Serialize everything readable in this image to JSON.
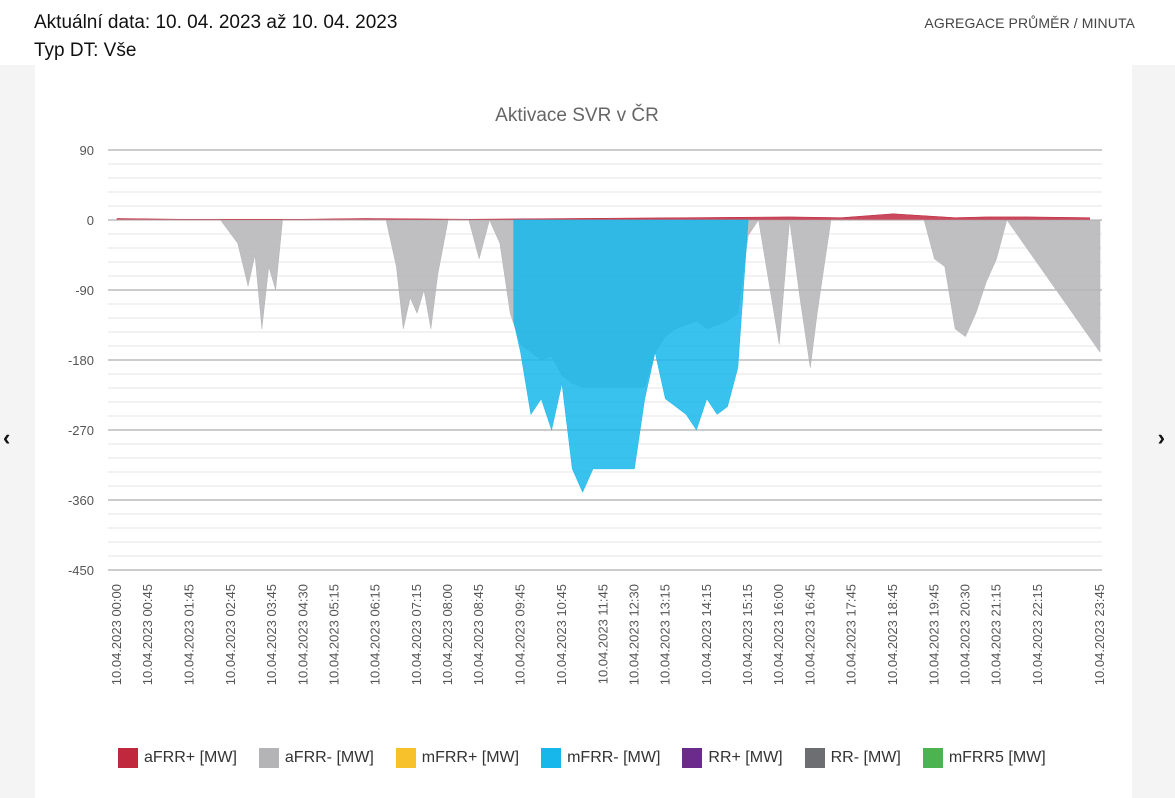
{
  "header": {
    "date_line": "Aktuální data: 10. 04. 2023 až 10. 04. 2023",
    "type_line": "Typ DT: Vše",
    "aggregation": "AGREGACE PRŮMĚR / MINUTA"
  },
  "nav": {
    "prev_icon": "chevron-left-icon",
    "next_icon": "chevron-right-icon"
  },
  "chart_data": {
    "type": "area",
    "title": "Aktivace SVR v ČR",
    "ylim": [
      -450,
      90
    ],
    "yticks": [
      90,
      0,
      -90,
      -180,
      -270,
      -360,
      -450
    ],
    "grid": true,
    "legend_position": "bottom",
    "x_tick_labels": [
      "10.04.2023 00:00",
      "10.04.2023 00:45",
      "10.04.2023 01:45",
      "10.04.2023 02:45",
      "10.04.2023 03:45",
      "10.04.2023 04:30",
      "10.04.2023 05:15",
      "10.04.2023 06:15",
      "10.04.2023 07:15",
      "10.04.2023 08:00",
      "10.04.2023 08:45",
      "10.04.2023 09:45",
      "10.04.2023 10:45",
      "10.04.2023 11:45",
      "10.04.2023 12:30",
      "10.04.2023 13:15",
      "10.04.2023 14:15",
      "10.04.2023 15:15",
      "10.04.2023 16:00",
      "10.04.2023 16:45",
      "10.04.2023 17:45",
      "10.04.2023 18:45",
      "10.04.2023 19:45",
      "10.04.2023 20:30",
      "10.04.2023 21:15",
      "10.04.2023 22:15",
      "10.04.2023 23:45"
    ],
    "series": [
      {
        "name": "aFRR+ [MW]",
        "color": "#c0283e",
        "x": [
          "00:00",
          "01:30",
          "04:30",
          "06:00",
          "08:30",
          "16:15",
          "17:30",
          "18:45",
          "20:15",
          "21:00",
          "22:00",
          "23:30"
        ],
        "values": [
          2,
          1,
          1,
          2,
          1,
          4,
          3,
          8,
          3,
          4,
          4,
          3
        ]
      },
      {
        "name": "aFRR- [MW]",
        "color": "#b4b4b7",
        "x": [
          "00:00",
          "02:30",
          "02:55",
          "03:10",
          "03:20",
          "03:30",
          "03:40",
          "03:50",
          "04:00",
          "06:30",
          "06:45",
          "06:55",
          "07:05",
          "07:15",
          "07:25",
          "07:35",
          "07:45",
          "08:00",
          "08:30",
          "08:45",
          "09:00",
          "09:15",
          "09:30",
          "09:45",
          "10:00",
          "10:15",
          "10:30",
          "10:45",
          "11:00",
          "11:15",
          "11:30",
          "11:45",
          "12:00",
          "12:15",
          "12:30",
          "12:45",
          "13:00",
          "13:15",
          "13:30",
          "13:45",
          "14:00",
          "14:15",
          "14:30",
          "14:45",
          "15:00",
          "15:15",
          "15:30",
          "15:45",
          "16:00",
          "16:15",
          "16:30",
          "16:45",
          "16:55",
          "17:05",
          "17:15",
          "19:30",
          "19:45",
          "20:00",
          "20:15",
          "20:30",
          "20:45",
          "21:00",
          "21:15",
          "21:30",
          "23:45"
        ],
        "values": [
          0,
          0,
          -30,
          -85,
          -45,
          -140,
          -60,
          -90,
          0,
          0,
          -60,
          -140,
          -100,
          -120,
          -90,
          -140,
          -70,
          0,
          0,
          -50,
          0,
          -30,
          -120,
          -160,
          -170,
          -180,
          -175,
          -200,
          -210,
          -215,
          -215,
          -215,
          -215,
          -215,
          -215,
          -215,
          -170,
          -150,
          -140,
          -135,
          -130,
          -140,
          -135,
          -130,
          -120,
          -20,
          0,
          -80,
          -160,
          0,
          -100,
          -190,
          -120,
          -60,
          0,
          0,
          -50,
          -60,
          -140,
          -150,
          -120,
          -80,
          -50,
          0,
          -170
        ]
      },
      {
        "name": "mFRR+ [MW]",
        "color": "#f6c12b",
        "x": [],
        "values": []
      },
      {
        "name": "mFRR- [MW]",
        "color": "#18b7eb",
        "x": [
          "09:35",
          "09:45",
          "10:00",
          "10:15",
          "10:30",
          "10:45",
          "11:00",
          "11:15",
          "11:30",
          "11:45",
          "12:00",
          "12:15",
          "12:30",
          "12:45",
          "13:00",
          "13:15",
          "13:30",
          "13:45",
          "14:00",
          "14:15",
          "14:30",
          "14:45",
          "15:00",
          "15:15"
        ],
        "values": [
          -130,
          -170,
          -250,
          -230,
          -270,
          -210,
          -320,
          -350,
          -320,
          -320,
          -320,
          -320,
          -320,
          -230,
          -170,
          -230,
          -240,
          -250,
          -270,
          -230,
          -250,
          -240,
          -190,
          0
        ]
      },
      {
        "name": "RR+ [MW]",
        "color": "#6b2b8a",
        "x": [],
        "values": []
      },
      {
        "name": "RR- [MW]",
        "color": "#6d6e72",
        "x": [],
        "values": []
      },
      {
        "name": "mFRR5 [MW]",
        "color": "#4bb34f",
        "x": [],
        "values": []
      }
    ]
  }
}
